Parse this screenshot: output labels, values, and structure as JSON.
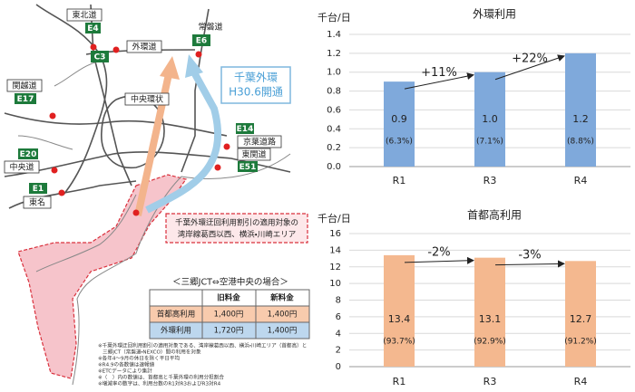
{
  "map": {
    "labels": [
      "東北道",
      "E4",
      "常磐道",
      "E6",
      "外環道",
      "C3",
      "関越道",
      "E17",
      "中央環状",
      "千葉外環",
      "H30.6開通",
      "E14",
      "京葉道路",
      "東関道",
      "E51",
      "E20",
      "中央道",
      "E1",
      "東名"
    ],
    "callout": [
      "千葉外環迂回利用割引の適用対象の",
      "湾岸線葛西以西、横浜・川崎エリア"
    ]
  },
  "table": {
    "title": "＜三郷JCT⇔空港中央の場合＞",
    "header": [
      "旧料金",
      "新料金"
    ],
    "rows": [
      [
        "首都高利用",
        "1,400円",
        "1,400円"
      ],
      [
        "外環利用",
        "1,720円",
        "1,400円"
      ]
    ]
  },
  "notes": [
    "※千葉外環迂回利用割引の適用対象である、湾岸線葛西以西、横浜・川崎エリア（首都高）と",
    "三郷JCT（常磐道・NEXCO）間の利用を対象",
    "※各年4～9月の休日を除く平日平均",
    "※R4.9の各数値は速報値",
    "※ETCデータにより集計",
    "※（　）内の数値は、首都高と千葉外環の利用分担割合",
    "※増減率の数字は、利用台数のR1対R3およびR3対R4"
  ],
  "chart_data": [
    {
      "type": "bar",
      "title": "外環利用",
      "y_label": "千台/日",
      "categories": [
        "R1",
        "R3",
        "R4"
      ],
      "values": [
        0.9,
        1.0,
        1.2
      ],
      "value_labels": [
        "0.9",
        "1.0",
        "1.2"
      ],
      "share_labels": [
        "(6.3%)",
        "(7.1%)",
        "(8.8%)"
      ],
      "annotations": [
        "+11%",
        "+22%"
      ],
      "color": "#7fa9db",
      "ylim": [
        0,
        1.4
      ],
      "yticks": [
        {
          "value": 0,
          "label": "0.0"
        },
        0.2,
        0.4,
        0.6,
        0.8,
        {
          "value": 1,
          "label": "1.0"
        },
        1.2,
        1.4
      ],
      "grid": true
    },
    {
      "type": "bar",
      "title": "首都高利用",
      "y_label": "千台/日",
      "categories": [
        "R1",
        "R3",
        "R4"
      ],
      "values": [
        13.4,
        13.1,
        12.7
      ],
      "share_labels": [
        "(93.7%)",
        "(92.9%)",
        "(91.2%)"
      ],
      "annotations": [
        "-2%",
        "-3%"
      ],
      "color": "#f4b88f",
      "ylim": [
        0,
        16
      ],
      "yticks": [
        0,
        2,
        4,
        6,
        8,
        10,
        12,
        14,
        16
      ],
      "grid": true
    }
  ]
}
